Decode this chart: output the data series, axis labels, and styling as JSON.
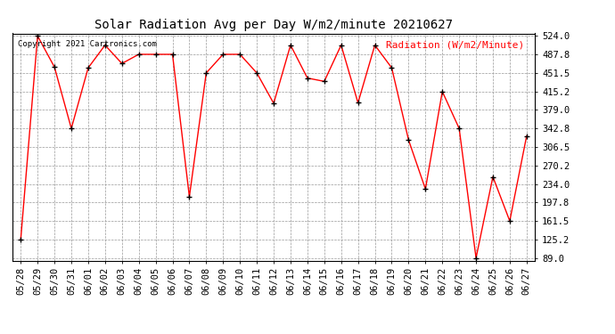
{
  "title": "Solar Radiation Avg per Day W/m2/minute 20210627",
  "copyright": "Copyright 2021 Cartronics.com",
  "legend_label": "Radiation (W/m2/Minute)",
  "dates": [
    "05/28",
    "05/29",
    "05/30",
    "05/31",
    "06/01",
    "06/02",
    "06/03",
    "06/04",
    "06/05",
    "06/06",
    "06/07",
    "06/08",
    "06/09",
    "06/10",
    "06/11",
    "06/12",
    "06/13",
    "06/14",
    "06/15",
    "06/16",
    "06/17",
    "06/18",
    "06/19",
    "06/20",
    "06/21",
    "06/22",
    "06/23",
    "06/24",
    "06/25",
    "06/26",
    "06/27"
  ],
  "values": [
    125.2,
    524.0,
    463.0,
    342.8,
    461.5,
    506.0,
    470.0,
    488.0,
    488.0,
    488.0,
    209.0,
    451.5,
    488.0,
    488.0,
    451.5,
    392.0,
    506.0,
    441.5,
    435.0,
    506.0,
    393.0,
    506.0,
    461.5,
    320.0,
    224.0,
    415.2,
    342.8,
    89.0,
    248.0,
    161.5,
    328.0
  ],
  "ylim_min": 89.0,
  "ylim_max": 524.0,
  "yticks": [
    89.0,
    125.2,
    161.5,
    197.8,
    234.0,
    270.2,
    306.5,
    342.8,
    379.0,
    415.2,
    451.5,
    487.8,
    524.0
  ],
  "line_color": "red",
  "marker_color": "black",
  "background_color": "white",
  "grid_color": "#999999",
  "title_fontsize": 10,
  "tick_fontsize": 7.5,
  "copyright_fontsize": 6.5,
  "legend_fontsize": 8
}
